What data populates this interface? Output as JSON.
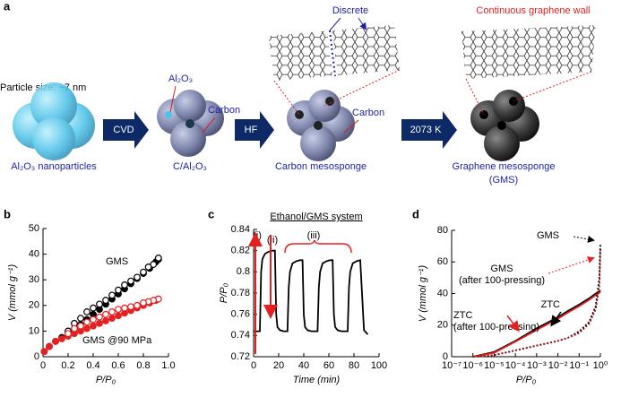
{
  "panel_a": {
    "label": "a",
    "particle_size": "Particle size: ~7 nm",
    "al2o3": "Al₂O₃",
    "carbon_1": "Carbon",
    "discrete": "Discrete",
    "continuous": "Continuous graphene wall",
    "carbon_2": "Carbon",
    "steps": [
      "CVD",
      "HF",
      "2073 K"
    ],
    "captions": [
      "Al₂O₃ nanoparticles",
      "C/Al₂O₃",
      "Carbon mesosponge",
      "Graphene mesosponge",
      "(GMS)"
    ]
  },
  "chart_data": [
    {
      "type": "scatter",
      "label": "b",
      "xlabel": "P/P₀",
      "ylabel": "V (mmol g⁻¹)",
      "xlim": [
        0,
        1
      ],
      "xticks": [
        0,
        0.2,
        0.4,
        0.6,
        0.8,
        {
          "value": 1,
          "label": "1.0"
        }
      ],
      "ylim": [
        0,
        50
      ],
      "yticks": [
        0,
        10,
        20,
        30,
        40,
        50
      ],
      "series": [
        {
          "color": "#000000",
          "marker": "filled",
          "x": [
            0.01,
            0.05,
            0.1,
            0.15,
            0.2,
            0.25,
            0.3,
            0.35,
            0.4,
            0.45,
            0.5,
            0.55,
            0.6,
            0.65,
            0.7,
            0.75,
            0.8,
            0.85,
            0.9,
            0.92
          ],
          "values": [
            2,
            4,
            6,
            7.5,
            9,
            11,
            12.5,
            14.5,
            16.5,
            18.5,
            20.5,
            22.5,
            24.5,
            26.5,
            28.5,
            30.5,
            32.5,
            34.5,
            37,
            38
          ]
        },
        {
          "color": "#000000",
          "marker": "open",
          "x": [
            0.92,
            0.88,
            0.84,
            0.8,
            0.75,
            0.7,
            0.65,
            0.6,
            0.55,
            0.5,
            0.45,
            0.4,
            0.35,
            0.3,
            0.25,
            0.2
          ],
          "values": [
            38.5,
            36,
            35,
            33,
            31,
            29.5,
            28,
            26,
            24,
            22,
            20.5,
            19,
            17.5,
            15,
            13,
            10
          ]
        },
        {
          "color": "#e52020",
          "marker": "filled",
          "x": [
            0.01,
            0.05,
            0.1,
            0.15,
            0.2,
            0.25,
            0.3,
            0.35,
            0.4,
            0.45,
            0.5,
            0.55,
            0.6,
            0.65,
            0.7,
            0.75,
            0.8,
            0.85,
            0.9,
            0.92
          ],
          "values": [
            2,
            4,
            6,
            7,
            8,
            9,
            10,
            11,
            12,
            13,
            14,
            15,
            16,
            17,
            18,
            19,
            20,
            21,
            22,
            22.5
          ]
        },
        {
          "color": "#e52020",
          "marker": "open",
          "x": [
            0.92,
            0.88,
            0.84,
            0.8,
            0.75,
            0.7,
            0.65,
            0.6,
            0.55,
            0.5,
            0.45,
            0.4,
            0.35,
            0.3,
            0.25,
            0.2
          ],
          "values": [
            22.5,
            22,
            21.5,
            21,
            20,
            19.5,
            19,
            18.5,
            17.5,
            16.5,
            15.5,
            14.5,
            13.5,
            12,
            11,
            9
          ]
        }
      ],
      "annotations": [
        {
          "text": "GMS",
          "color": "#000000"
        },
        {
          "text": "GMS  @90 MPa",
          "color": "#e52020"
        }
      ]
    },
    {
      "type": "line",
      "label": "c",
      "title": "Ethanol/GMS system",
      "xlabel": "Time (min)",
      "ylabel": "P/P₀",
      "xlim": [
        0,
        100
      ],
      "xticks": [
        0,
        20,
        40,
        60,
        80,
        100
      ],
      "ylim": [
        0.72,
        0.84
      ],
      "yticks": [
        0.72,
        0.74,
        0.76,
        0.78,
        0.8,
        0.82,
        0.84
      ],
      "x": [
        0,
        3,
        5,
        6,
        7,
        9,
        12,
        15,
        17,
        18,
        19,
        21,
        24,
        27,
        28,
        29,
        31,
        34,
        37,
        39,
        40,
        41,
        43,
        46,
        49,
        51,
        52,
        53,
        55,
        58,
        61,
        63,
        64,
        65,
        67,
        70,
        73,
        75,
        76,
        77,
        79,
        82,
        85,
        88,
        91
      ],
      "series": [
        {
          "color": "#000000",
          "values": [
            0.744,
            0.744,
            0.744,
            0.8,
            0.812,
            0.817,
            0.819,
            0.82,
            0.82,
            0.76,
            0.748,
            0.745,
            0.744,
            0.744,
            0.785,
            0.8,
            0.808,
            0.81,
            0.811,
            0.811,
            0.76,
            0.748,
            0.745,
            0.744,
            0.744,
            0.744,
            0.785,
            0.8,
            0.808,
            0.81,
            0.811,
            0.811,
            0.76,
            0.748,
            0.745,
            0.744,
            0.744,
            0.744,
            0.785,
            0.8,
            0.808,
            0.81,
            0.811,
            0.745,
            0.741
          ]
        }
      ],
      "annotations": [
        {
          "text": "(i)",
          "color": "#e52020"
        },
        {
          "text": "(ii)",
          "color": "#e52020"
        },
        {
          "text": "(iii)",
          "color": "#e52020"
        }
      ]
    },
    {
      "type": "line",
      "label": "d",
      "xlabel": "P/P₀",
      "ylabel": "V (mmol g⁻¹)",
      "xlog": true,
      "xlim": [
        1e-07,
        1
      ],
      "xticks": [
        {
          "value": 1e-07,
          "label": "10⁻⁷"
        },
        {
          "value": 1e-06,
          "label": "10⁻⁶"
        },
        {
          "value": 1e-05,
          "label": "10⁻⁵"
        },
        {
          "value": 0.0001,
          "label": "10⁻⁴"
        },
        {
          "value": 0.001,
          "label": "10⁻³"
        },
        {
          "value": 0.01,
          "label": "10⁻²"
        },
        {
          "value": 0.1,
          "label": "10⁻¹"
        },
        {
          "value": 1,
          "label": "10⁰"
        }
      ],
      "ylim": [
        0,
        80
      ],
      "yticks": [
        0,
        20,
        40,
        60,
        80
      ],
      "x": [
        1e-06,
        1e-05,
        0.0001,
        0.001,
        0.01,
        0.03,
        0.1,
        0.3,
        0.6,
        0.9,
        1
      ],
      "series": [
        {
          "color": "#000000",
          "dash": false,
          "values": [
            0,
            3,
            10,
            18,
            25,
            29,
            33,
            37,
            40,
            41,
            42
          ]
        },
        {
          "color": "#e52020",
          "dash": false,
          "values": [
            0,
            2.5,
            9.5,
            17,
            24,
            28,
            32,
            36,
            39,
            40.5,
            41
          ]
        },
        {
          "color": "#000000",
          "dash": true,
          "values": [
            0,
            1,
            4,
            7,
            10,
            12,
            16,
            22,
            32,
            50,
            72
          ]
        },
        {
          "color": "#a01010",
          "dash": true,
          "values": [
            0,
            1,
            4,
            7,
            10,
            12,
            15,
            21,
            30,
            45,
            68
          ]
        }
      ],
      "annotations": [
        {
          "lines": [
            "GMS"
          ],
          "color": "#000000"
        },
        {
          "lines": [
            "GMS",
            "(after 100-pressing)"
          ],
          "color": "#e52020"
        },
        {
          "lines": [
            "ZTC"
          ],
          "color": "#000000"
        },
        {
          "lines": [
            "ZTC",
            "(after 100-pressing)"
          ],
          "color": "#e52020"
        }
      ]
    }
  ]
}
